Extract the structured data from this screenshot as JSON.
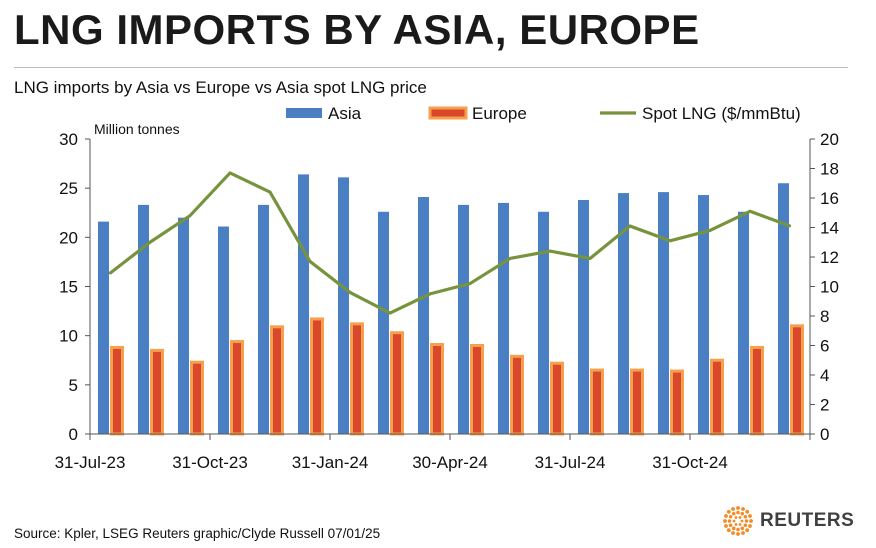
{
  "headline": "LNG IMPORTS BY ASIA, EUROPE",
  "source": "Source: Kpler, LSEG    Reuters graphic/Clyde Russell 07/01/25",
  "logo": {
    "text": "REUTERS",
    "icon": "reuters-dot-logo-icon",
    "color": "#f28c28"
  },
  "colors": {
    "asia": "#4a7fc4",
    "europe_fill": "#d9482b",
    "europe_border": "#f6a04d",
    "spot": "#77933c"
  },
  "chart_data": {
    "type": "bar",
    "title": "LNG imports by Asia vs Europe vs Asia spot LNG price",
    "ylabel": "Million tonnes",
    "ylim": [
      0,
      30
    ],
    "y_ticks": [
      0,
      5,
      10,
      15,
      20,
      25,
      30
    ],
    "y2lim": [
      0,
      20
    ],
    "y2_ticks": [
      0,
      2,
      4,
      6,
      8,
      10,
      12,
      14,
      16,
      18,
      20
    ],
    "x_tick_labels": [
      "31-Jul-23",
      "31-Oct-23",
      "31-Jan-24",
      "30-Apr-24",
      "31-Jul-24",
      "31-Oct-24"
    ],
    "x_tick_label_index": [
      0,
      3,
      6,
      9,
      12,
      15
    ],
    "categories": [
      "2023-07",
      "2023-08",
      "2023-09",
      "2023-10",
      "2023-11",
      "2023-12",
      "2024-01",
      "2024-02",
      "2024-03",
      "2024-04",
      "2024-05",
      "2024-06",
      "2024-07",
      "2024-08",
      "2024-09",
      "2024-10",
      "2024-11",
      "2024-12"
    ],
    "series": [
      {
        "name": "Asia",
        "type": "bar",
        "axis": "left",
        "values": [
          21.6,
          23.3,
          22.0,
          21.1,
          23.3,
          26.4,
          26.1,
          22.6,
          24.1,
          23.3,
          23.5,
          22.6,
          23.8,
          24.5,
          24.6,
          24.3,
          22.6,
          25.5
        ]
      },
      {
        "name": "Europe",
        "type": "bar",
        "axis": "left",
        "values": [
          8.8,
          8.5,
          7.3,
          9.4,
          10.9,
          11.7,
          11.2,
          10.3,
          9.1,
          9.0,
          7.9,
          7.2,
          6.5,
          6.5,
          6.4,
          7.5,
          8.8,
          11.0
        ]
      },
      {
        "name": "Spot LNG ($/mmBtu)",
        "type": "line",
        "axis": "right",
        "values": [
          10.9,
          13.0,
          14.8,
          17.7,
          16.4,
          11.7,
          9.6,
          8.2,
          9.5,
          10.2,
          11.9,
          12.4,
          11.9,
          14.1,
          13.1,
          13.8,
          15.1,
          14.1
        ]
      }
    ],
    "legend_position": "top",
    "grid": false
  }
}
